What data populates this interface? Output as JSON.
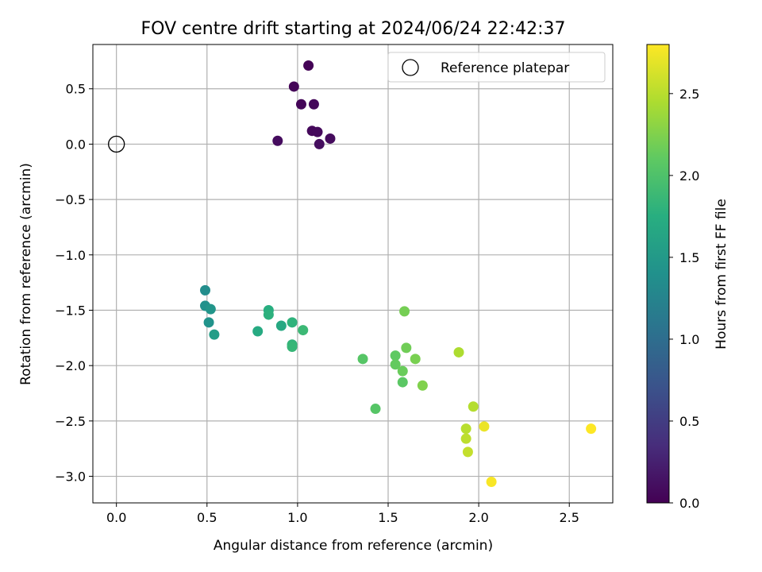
{
  "chart_data": {
    "type": "scatter",
    "title": "FOV centre drift starting at 2024/06/24 22:42:37",
    "xlabel": "Angular distance from reference (arcmin)",
    "ylabel": "Rotation from reference (arcmin)",
    "xlim": [
      -0.13,
      2.74
    ],
    "ylim": [
      -3.24,
      0.9
    ],
    "xticks": [
      0.0,
      0.5,
      1.0,
      1.5,
      2.0,
      2.5
    ],
    "xtick_labels": [
      "0.0",
      "0.5",
      "1.0",
      "1.5",
      "2.0",
      "2.5"
    ],
    "yticks": [
      0.5,
      0.0,
      -0.5,
      -1.0,
      -1.5,
      -2.0,
      -2.5,
      -3.0
    ],
    "ytick_labels": [
      "0.5",
      "0.0",
      "−0.5",
      "−1.0",
      "−1.5",
      "−2.0",
      "−2.5",
      "−3.0"
    ],
    "grid": true,
    "legend": {
      "placement": "top-right",
      "entries": [
        "Reference platepar"
      ]
    },
    "reference_point": {
      "x": 0.0,
      "y": 0.0
    },
    "colorbar": {
      "label": "Hours from first FF file",
      "colormap": "viridis",
      "range": [
        0.0,
        2.8
      ],
      "ticks": [
        0.0,
        0.5,
        1.0,
        1.5,
        2.0,
        2.5
      ],
      "tick_labels": [
        "0.0",
        "0.5",
        "1.0",
        "1.5",
        "2.0",
        "2.5"
      ]
    },
    "points": [
      {
        "x": 1.06,
        "y": 0.71,
        "c": 0.02
      },
      {
        "x": 0.98,
        "y": 0.52,
        "c": 0.03
      },
      {
        "x": 1.02,
        "y": 0.36,
        "c": 0.04
      },
      {
        "x": 1.09,
        "y": 0.36,
        "c": 0.05
      },
      {
        "x": 1.08,
        "y": 0.12,
        "c": 0.06
      },
      {
        "x": 1.11,
        "y": 0.11,
        "c": 0.07
      },
      {
        "x": 1.18,
        "y": 0.05,
        "c": 0.08
      },
      {
        "x": 0.89,
        "y": 0.03,
        "c": 0.09
      },
      {
        "x": 1.12,
        "y": 0.0,
        "c": 0.1
      },
      {
        "x": 0.49,
        "y": -1.32,
        "c": 1.35
      },
      {
        "x": 0.49,
        "y": -1.46,
        "c": 1.4
      },
      {
        "x": 0.52,
        "y": -1.49,
        "c": 1.45
      },
      {
        "x": 0.51,
        "y": -1.61,
        "c": 1.42
      },
      {
        "x": 0.54,
        "y": -1.72,
        "c": 1.55
      },
      {
        "x": 0.78,
        "y": -1.69,
        "c": 1.7
      },
      {
        "x": 0.84,
        "y": -1.5,
        "c": 1.75
      },
      {
        "x": 0.84,
        "y": -1.54,
        "c": 1.78
      },
      {
        "x": 0.91,
        "y": -1.64,
        "c": 1.68
      },
      {
        "x": 0.97,
        "y": -1.61,
        "c": 1.8
      },
      {
        "x": 0.97,
        "y": -1.81,
        "c": 1.82
      },
      {
        "x": 0.97,
        "y": -1.83,
        "c": 1.85
      },
      {
        "x": 1.03,
        "y": -1.68,
        "c": 1.88
      },
      {
        "x": 1.36,
        "y": -1.94,
        "c": 2.05
      },
      {
        "x": 1.43,
        "y": -2.39,
        "c": 2.05
      },
      {
        "x": 1.54,
        "y": -1.91,
        "c": 2.1
      },
      {
        "x": 1.54,
        "y": -1.99,
        "c": 2.12
      },
      {
        "x": 1.58,
        "y": -2.05,
        "c": 2.15
      },
      {
        "x": 1.58,
        "y": -2.15,
        "c": 2.08
      },
      {
        "x": 1.59,
        "y": -1.51,
        "c": 2.2
      },
      {
        "x": 1.6,
        "y": -1.84,
        "c": 2.18
      },
      {
        "x": 1.65,
        "y": -1.94,
        "c": 2.22
      },
      {
        "x": 1.69,
        "y": -2.18,
        "c": 2.25
      },
      {
        "x": 1.89,
        "y": -1.88,
        "c": 2.45
      },
      {
        "x": 1.93,
        "y": -2.57,
        "c": 2.5
      },
      {
        "x": 1.93,
        "y": -2.66,
        "c": 2.52
      },
      {
        "x": 1.94,
        "y": -2.78,
        "c": 2.55
      },
      {
        "x": 1.97,
        "y": -2.37,
        "c": 2.48
      },
      {
        "x": 2.03,
        "y": -2.55,
        "c": 2.72
      },
      {
        "x": 2.07,
        "y": -3.05,
        "c": 2.78
      },
      {
        "x": 2.62,
        "y": -2.57,
        "c": 2.8
      }
    ]
  }
}
